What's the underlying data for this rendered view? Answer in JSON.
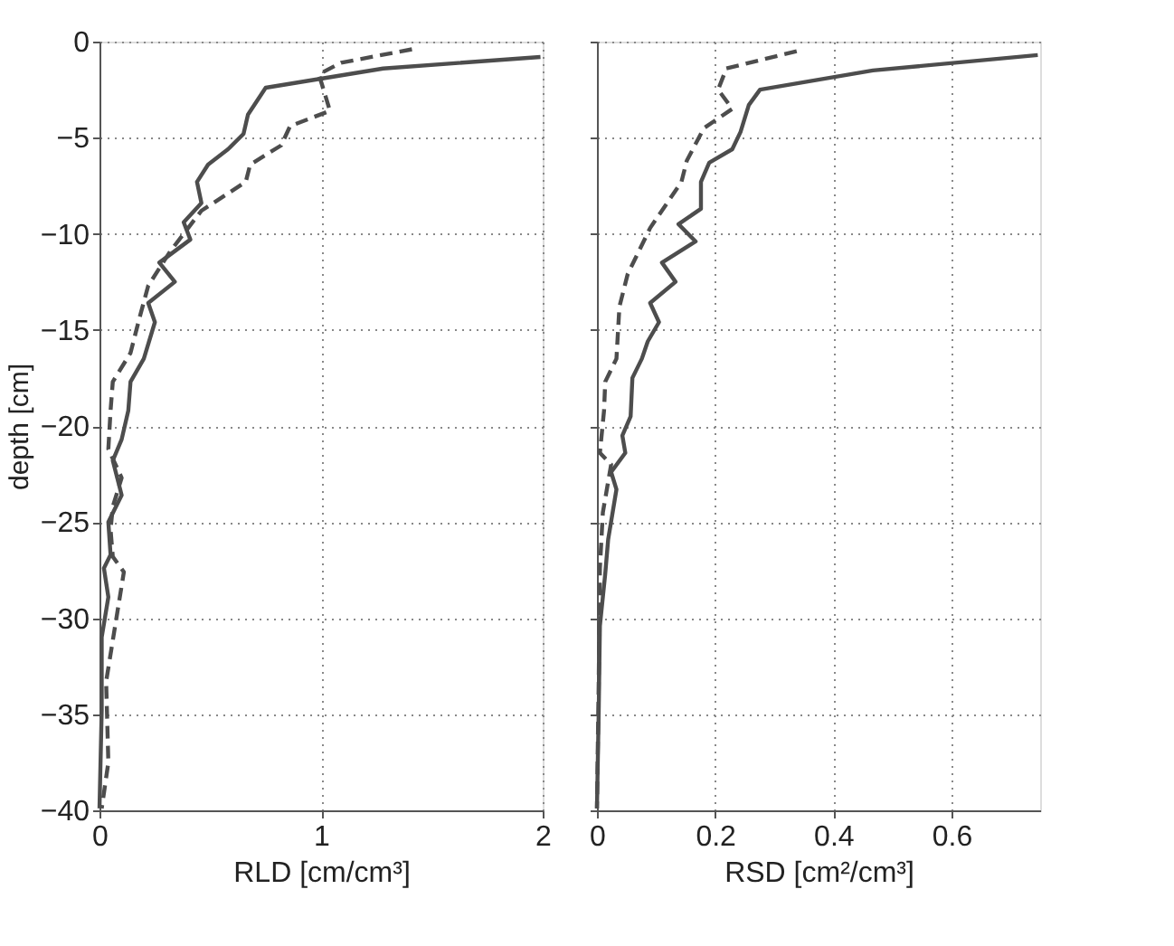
{
  "chart_data": [
    {
      "type": "line",
      "xlabel": "RLD [cm/cm³]",
      "ylabel": "depth [cm]",
      "xlim": [
        0,
        2
      ],
      "xticks": [
        0,
        1,
        2
      ],
      "ylim": [
        -40,
        0
      ],
      "yticks": [
        -40,
        -35,
        -30,
        -25,
        -20,
        -15,
        -10,
        -5,
        0
      ],
      "grid": true,
      "series": [
        {
          "color": "#4d4d4d",
          "line_style": "solid",
          "x": [
            1.99,
            1.28,
            0.75,
            0.67,
            0.65,
            0.58,
            0.49,
            0.44,
            0.46,
            0.38,
            0.41,
            0.27,
            0.34,
            0.22,
            0.25,
            0.2,
            0.14,
            0.13,
            0.1,
            0.06,
            0.1,
            0.04,
            0.05,
            0.02,
            0.04,
            0.01,
            0.01,
            0
          ],
          "values": [
            -0.8,
            -1.4,
            -2.4,
            -3.8,
            -4.8,
            -5.6,
            -6.4,
            -7.3,
            -8.4,
            -9.4,
            -10.3,
            -11.5,
            -12.5,
            -13.6,
            -14.6,
            -16.5,
            -17.7,
            -19.2,
            -20.7,
            -21.8,
            -23.6,
            -25,
            -26.7,
            -27.4,
            -28.9,
            -31,
            -34.8,
            -39.9
          ]
        },
        {
          "color": "#4d4d4d",
          "line_style": "dashed",
          "x": [
            1.41,
            1.09,
            0.99,
            1.04,
            0.86,
            0.82,
            0.68,
            0.66,
            0.46,
            0.32,
            0.22,
            0.18,
            0.14,
            0.06,
            0.05,
            0.04,
            0.1,
            0.06,
            0.05,
            0.06,
            0.11,
            0.03,
            0.04,
            0.01
          ],
          "values": [
            -0.4,
            -1.1,
            -1.7,
            -3.6,
            -4.4,
            -5.4,
            -6.4,
            -7.3,
            -8.8,
            -10.9,
            -12.7,
            -14.4,
            -16.2,
            -17.7,
            -19.2,
            -21.2,
            -22.7,
            -24.2,
            -25.4,
            -26.8,
            -27.6,
            -33.3,
            -37.5,
            -39.9
          ]
        }
      ]
    },
    {
      "type": "line",
      "xlabel": "RSD [cm²/cm³]",
      "xlim": [
        0,
        0.75
      ],
      "xticks": [
        0,
        0.2,
        0.4,
        0.6
      ],
      "ylim": [
        -40,
        0
      ],
      "yticks": [
        -40,
        -35,
        -30,
        -25,
        -20,
        -15,
        -10,
        -5,
        0
      ],
      "grid": true,
      "tick_labels": "x",
      "series": [
        {
          "color": "#4d4d4d",
          "line_style": "solid",
          "x": [
            0.746,
            0.467,
            0.276,
            0.257,
            0.243,
            0.229,
            0.19,
            0.176,
            0.176,
            0.138,
            0.167,
            0.11,
            0.133,
            0.09,
            0.105,
            0.086,
            0.076,
            0.06,
            0.057,
            0.043,
            0.048,
            0.024,
            0.033,
            0.019,
            0.014,
            0.005,
            0.003,
            0
          ],
          "values": [
            -0.7,
            -1.5,
            -2.5,
            -3.3,
            -4.7,
            -5.6,
            -6.3,
            -7.3,
            -8.7,
            -9.5,
            -10.4,
            -11.5,
            -12.5,
            -13.6,
            -14.6,
            -15.6,
            -16.5,
            -17.5,
            -19.5,
            -20.5,
            -21.4,
            -22.4,
            -23.3,
            -25.9,
            -27.7,
            -30.4,
            -34.8,
            -39.9
          ]
        },
        {
          "color": "#4d4d4d",
          "line_style": "dashed",
          "x": [
            0.338,
            0.219,
            0.205,
            0.229,
            0.181,
            0.152,
            0.143,
            0.09,
            0.052,
            0.038,
            0.033,
            0.014,
            0.012,
            0.005,
            0.024,
            0.01,
            0.005,
            0.003,
            0
          ],
          "values": [
            -0.5,
            -1.4,
            -2.5,
            -3.5,
            -4.5,
            -6.2,
            -7.3,
            -9.7,
            -12.1,
            -13.8,
            -16.5,
            -17.7,
            -19.2,
            -21.4,
            -22,
            -24.5,
            -27.4,
            -33.3,
            -39.9
          ]
        }
      ]
    }
  ]
}
